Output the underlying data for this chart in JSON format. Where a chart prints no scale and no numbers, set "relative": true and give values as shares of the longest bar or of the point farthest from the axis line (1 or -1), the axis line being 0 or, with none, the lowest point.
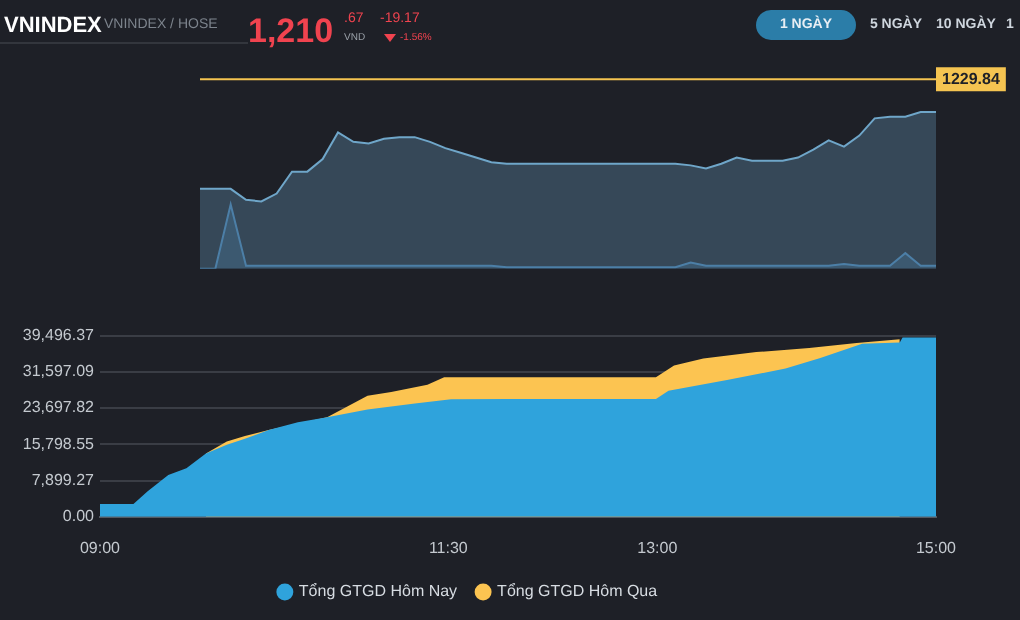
{
  "chart_data": [
    {
      "type": "other",
      "title": "VNINDEX",
      "subtitle": "VNINDEX / HOSE",
      "annotations": [
        "1,210",
        ".67",
        "VND",
        "-19.17",
        "-1.56%",
        "1 NGÀY",
        "5 NGÀY",
        "10 NGÀY",
        "1"
      ]
    },
    {
      "type": "area",
      "relative": true,
      "categories": [
        null,
        null,
        null,
        null,
        null,
        null,
        null,
        null,
        null,
        null,
        null,
        null,
        null,
        null,
        null,
        null,
        null,
        null,
        null,
        null,
        null,
        null,
        null,
        null,
        null,
        null,
        null,
        null,
        null,
        null,
        null,
        null,
        null,
        null,
        null,
        null,
        null,
        null,
        null,
        null,
        null,
        null,
        null,
        null,
        null,
        null,
        null,
        null,
        null
      ],
      "series": [
        {
          "color": "#6fa6c9",
          "values": [
            0.51,
            0.51,
            0.51,
            0.44,
            0.43,
            0.48,
            0.62,
            0.62,
            0.7,
            0.87,
            0.81,
            0.8,
            0.83,
            0.84,
            0.84,
            0.81,
            0.77,
            0.74,
            0.71,
            0.68,
            0.67,
            0.67,
            0.67,
            0.67,
            0.67,
            0.67,
            0.67,
            0.67,
            0.67,
            0.67,
            0.67,
            0.67,
            0.66,
            0.64,
            0.67,
            0.71,
            0.69,
            0.69,
            0.69,
            0.71,
            0.76,
            0.82,
            0.78,
            0.85,
            0.96,
            0.97,
            0.97,
            1,
            1
          ]
        },
        {
          "color": "#3d6f99",
          "values": [
            0,
            0,
            0.41,
            0.02,
            0.02,
            0.02,
            0.02,
            0.02,
            0.02,
            0.02,
            0.02,
            0.02,
            0.02,
            0.02,
            0.02,
            0.02,
            0.02,
            0.02,
            0.02,
            0.02,
            0.01,
            0.01,
            0.01,
            0.01,
            0.01,
            0.01,
            0.01,
            0.01,
            0.01,
            0.01,
            0.01,
            0.01,
            0.04,
            0.02,
            0.02,
            0.02,
            0.02,
            0.02,
            0.02,
            0.02,
            0.02,
            0.02,
            0.03,
            0.02,
            0.02,
            0.02,
            0.1,
            0.02,
            0.02
          ]
        }
      ],
      "ref_lines": [
        {
          "axis": "y",
          "value": 1.21,
          "color": "#f5c451"
        }
      ],
      "annotations": [
        "1229.84"
      ]
    },
    {
      "type": "area",
      "grid": "y",
      "legend": "bottom",
      "xlim": [
        9,
        15
      ],
      "xticks": [
        {
          "value": 9,
          "label": "09:00"
        },
        {
          "value": 11.5,
          "label": "11:30"
        },
        {
          "value": 13,
          "label": "13:00"
        },
        {
          "value": 15,
          "label": "15:00"
        }
      ],
      "ylim": [
        0,
        39496.37
      ],
      "yticks": [
        {
          "value": 0,
          "label": "0.00"
        },
        {
          "value": 7899.27,
          "label": "7,899.27"
        },
        {
          "value": 15798.55,
          "label": "15,798.55"
        },
        {
          "value": 23697.82,
          "label": "23,697.82"
        },
        {
          "value": 31597.09,
          "label": "31,597.09"
        },
        {
          "value": 39496.37,
          "label": "39,496.37"
        }
      ],
      "series": [
        {
          "name": "Tổng GTGD Hôm Nay",
          "color": "#2fa3dc",
          "x": [
            9,
            9.24,
            9.34,
            9.49,
            9.62,
            9.76,
            9.91,
            10.04,
            10.21,
            10.42,
            10.63,
            10.92,
            11.26,
            11.52,
            11.94,
            12.99,
            13.08,
            13.5,
            13.92,
            14.17,
            14.47,
            14.74,
            14.76,
            15
          ],
          "values": [
            2800,
            2800,
            5500,
            9100,
            10600,
            13800,
            15700,
            17000,
            18900,
            20600,
            21700,
            23400,
            24700,
            25600,
            25700,
            25700,
            27500,
            29800,
            32300,
            34600,
            37700,
            38000,
            39100,
            39100
          ]
        },
        {
          "name": "Tổng GTGD Hôm Qua",
          "color": "#fcc451",
          "x": [
            9.76,
            9.91,
            10.04,
            10.21,
            10.63,
            10.92,
            11.09,
            11.35,
            11.47,
            12.99,
            13.12,
            13.33,
            13.71,
            14.09,
            14.43,
            14.74
          ],
          "values": [
            13800,
            16400,
            17600,
            18900,
            21700,
            26400,
            27200,
            28800,
            30400,
            30400,
            33000,
            34500,
            35900,
            36800,
            37900,
            38700
          ]
        }
      ]
    }
  ]
}
